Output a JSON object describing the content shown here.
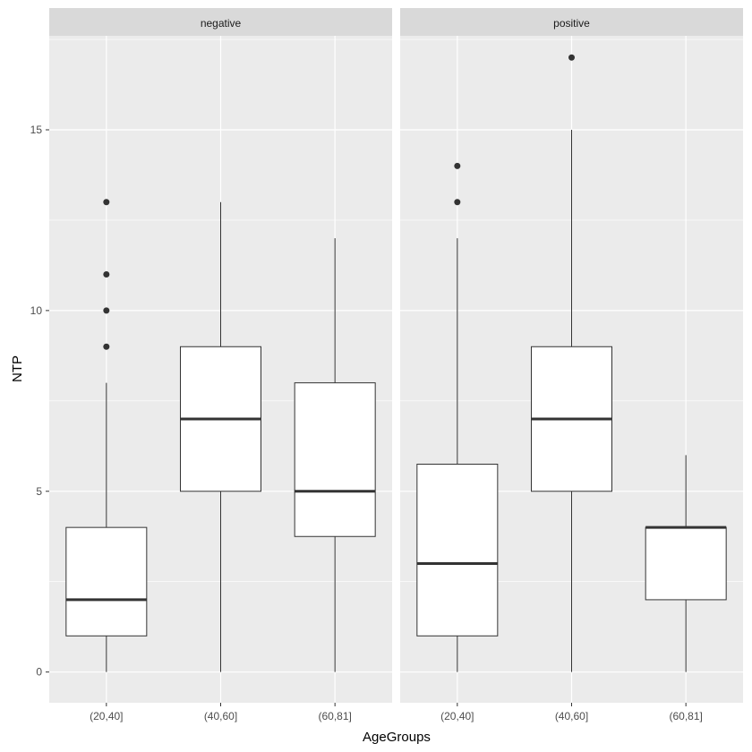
{
  "chart_data": {
    "type": "boxplot",
    "xlabel": "AgeGroups",
    "ylabel": "NTP",
    "ylim": [
      -0.85,
      17.6
    ],
    "yticks": [
      0,
      5,
      10,
      15
    ],
    "categories": [
      "(20,40]",
      "(40,60]",
      "(60,81]"
    ],
    "grid": true,
    "facets": [
      {
        "label": "negative",
        "boxes": [
          {
            "category": "(20,40]",
            "whisker_low": 0,
            "q1": 1,
            "median": 2,
            "q3": 4,
            "whisker_high": 8,
            "outliers": [
              9,
              10,
              11,
              13
            ]
          },
          {
            "category": "(40,60]",
            "whisker_low": 0,
            "q1": 5,
            "median": 7,
            "q3": 9,
            "whisker_high": 13,
            "outliers": []
          },
          {
            "category": "(60,81]",
            "whisker_low": 0,
            "q1": 3.75,
            "median": 5,
            "q3": 8,
            "whisker_high": 12,
            "outliers": []
          }
        ]
      },
      {
        "label": "positive",
        "boxes": [
          {
            "category": "(20,40]",
            "whisker_low": 0,
            "q1": 1,
            "median": 3,
            "q3": 5.75,
            "whisker_high": 12,
            "outliers": [
              13,
              14
            ]
          },
          {
            "category": "(40,60]",
            "whisker_low": 0,
            "q1": 5,
            "median": 7,
            "q3": 9,
            "whisker_high": 15,
            "outliers": [
              17
            ]
          },
          {
            "category": "(60,81]",
            "whisker_low": 0,
            "q1": 2,
            "median": 4,
            "q3": 4,
            "whisker_high": 6,
            "outliers": []
          }
        ]
      }
    ],
    "colors": {
      "panel_bg": "#ebebeb",
      "strip_bg": "#d9d9d9",
      "grid": "#ffffff",
      "box_fill": "#ffffff",
      "box_line": "#333333",
      "outlier": "#333333"
    }
  }
}
